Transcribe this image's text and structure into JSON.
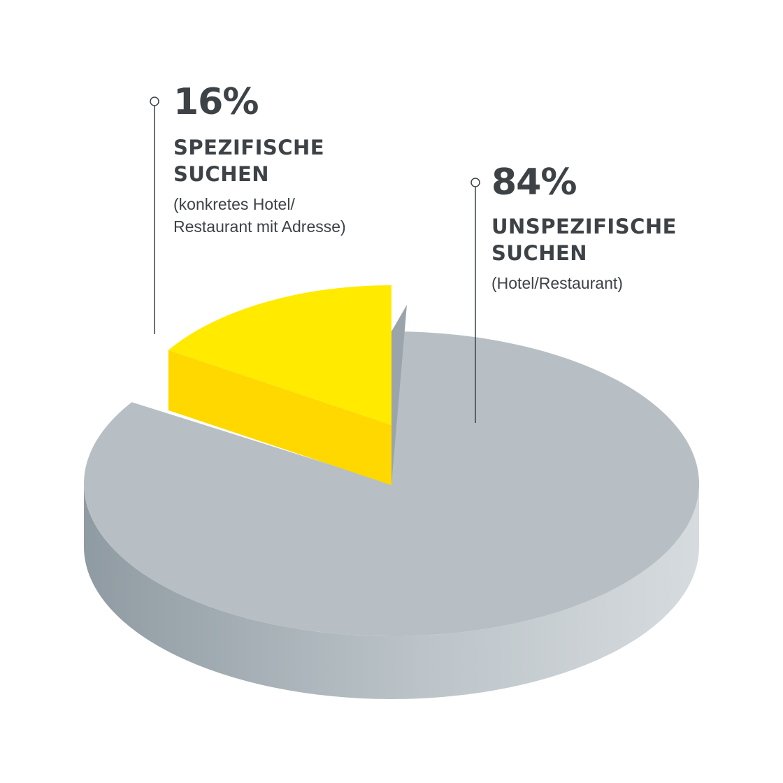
{
  "chart_data": {
    "type": "pie",
    "style": "3d",
    "slices": [
      {
        "label": "SPEZIFISCHE SUCHEN",
        "note": "(konkretes Hotel/ Restaurant mit Adresse)",
        "value": 16,
        "value_label": "16%",
        "color": "#ffea00",
        "side_color": "#ffd800",
        "exploded": true
      },
      {
        "label": "UNSPEZIFISCHE SUCHEN",
        "note": "(Hotel/Restaurant)",
        "value": 84,
        "value_label": "84%",
        "color": "#b7bfc5",
        "side_color": "#9aa4aa"
      }
    ]
  },
  "labels": {
    "a": {
      "pct": "16%",
      "line1": "SPEZIFISCHE",
      "line2": "SUCHEN",
      "desc1": "(konkretes Hotel/",
      "desc2": "Restaurant mit Adresse)"
    },
    "b": {
      "pct": "84%",
      "line1": "UNSPEZIFISCHE",
      "line2": "SUCHEN",
      "desc1": "(Hotel/Restaurant)"
    }
  }
}
